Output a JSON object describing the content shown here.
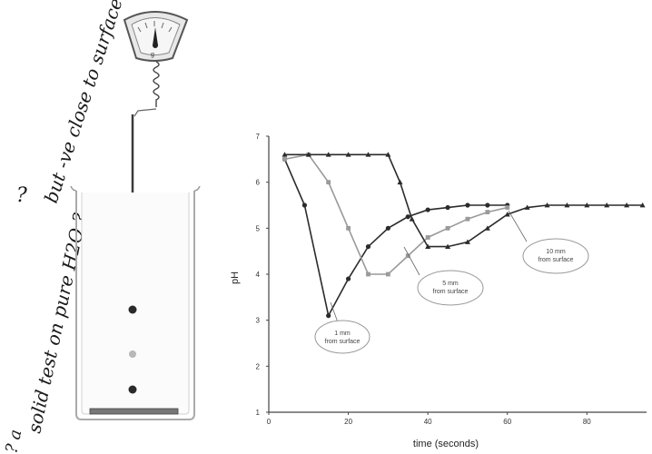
{
  "annotations": {
    "top_note": "but -ve close to surface",
    "top_q": "?",
    "side_note": "solid test on pure H2O ?",
    "side_marks": "? a"
  },
  "scale": {
    "dial_label": "g"
  },
  "colors": {
    "dot_dark": "#2a2a2a",
    "dot_light": "#b8b8b8",
    "beaker_stroke": "#aaaaaa",
    "line": "#2b2b2b",
    "marker_light": "#9a9a9a"
  },
  "chart_data": {
    "type": "line",
    "xlabel": "time (seconds)",
    "ylabel": "pH",
    "xlim": [
      0,
      95
    ],
    "ylim": [
      1,
      7
    ],
    "xticks": [
      0,
      20,
      40,
      60,
      80
    ],
    "yticks": [
      1,
      2,
      3,
      4,
      5,
      6,
      7
    ],
    "grid": false,
    "series": [
      {
        "name": "1 mm from surface",
        "marker": "circle",
        "color": "#2b2b2b",
        "x": [
          4,
          9,
          15,
          20,
          25,
          30,
          35,
          40,
          45,
          50,
          55,
          60
        ],
        "y": [
          6.5,
          5.5,
          3.1,
          3.9,
          4.6,
          5.0,
          5.25,
          5.4,
          5.45,
          5.5,
          5.5,
          5.5
        ]
      },
      {
        "name": "5 mm from surface",
        "marker": "square",
        "color": "#9a9a9a",
        "x": [
          4,
          10,
          15,
          20,
          25,
          30,
          35,
          40,
          45,
          50,
          55,
          60
        ],
        "y": [
          6.5,
          6.6,
          6.0,
          5.0,
          4.0,
          4.0,
          4.4,
          4.8,
          5.0,
          5.2,
          5.35,
          5.45
        ]
      },
      {
        "name": "10 mm from surface",
        "marker": "triangle",
        "color": "#2b2b2b",
        "x": [
          4,
          10,
          15,
          20,
          25,
          30,
          33,
          36,
          40,
          45,
          50,
          55,
          60,
          65,
          70,
          75,
          80,
          85,
          90,
          94
        ],
        "y": [
          6.6,
          6.6,
          6.6,
          6.6,
          6.6,
          6.6,
          6.0,
          5.2,
          4.6,
          4.6,
          4.7,
          5.0,
          5.3,
          5.45,
          5.5,
          5.5,
          5.5,
          5.5,
          5.5,
          5.5
        ]
      }
    ],
    "callouts": [
      {
        "label_line1": "1 mm",
        "label_line2": "from surface"
      },
      {
        "label_line1": "5 mm",
        "label_line2": "from surface"
      },
      {
        "label_line1": "10 mm",
        "label_line2": "from surface"
      }
    ]
  }
}
